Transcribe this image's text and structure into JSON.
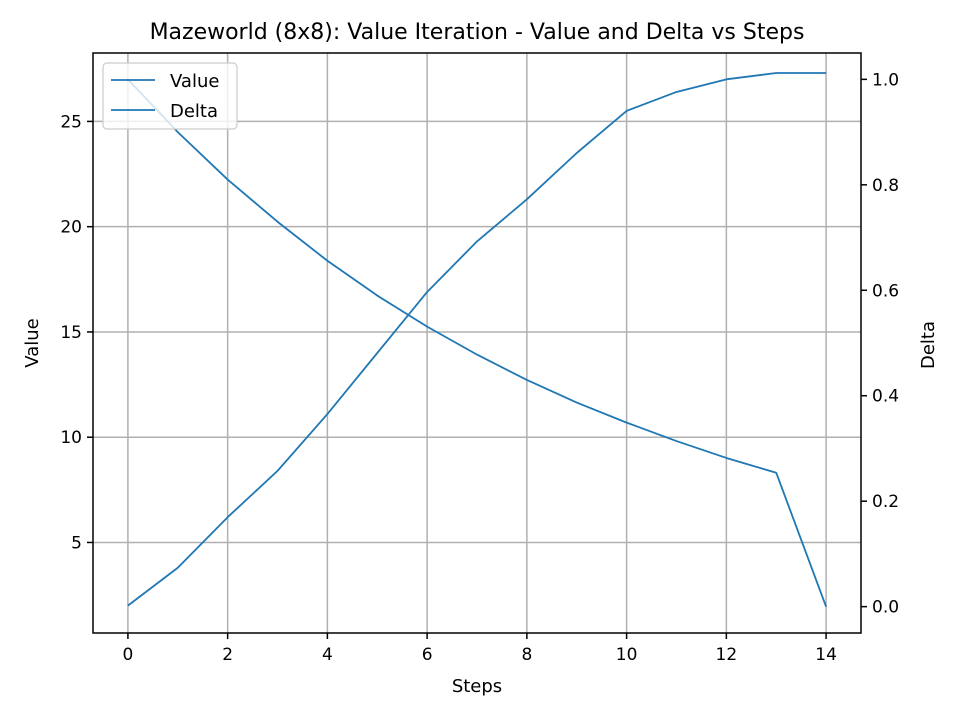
{
  "chart_data": {
    "type": "line",
    "title": "Mazeworld (8x8): Value Iteration - Value and Delta vs Steps",
    "xlabel": "Steps",
    "ylabel": "Value",
    "y2label": "Delta",
    "xlim": [
      -0.7,
      14.7
    ],
    "ylim": [
      0.7,
      28.25
    ],
    "y2lim": [
      -0.05,
      1.05
    ],
    "x_ticks": [
      0,
      2,
      4,
      6,
      8,
      10,
      12,
      14
    ],
    "y_ticks": [
      5,
      10,
      15,
      20,
      25
    ],
    "y2_ticks": [
      0.0,
      0.2,
      0.4,
      0.6,
      0.8,
      1.0
    ],
    "x_tick_labels": [
      "0",
      "2",
      "4",
      "6",
      "8",
      "10",
      "12",
      "14"
    ],
    "y_tick_labels": [
      "5",
      "10",
      "15",
      "20",
      "25"
    ],
    "y2_tick_labels": [
      "0.0",
      "0.2",
      "0.4",
      "0.6",
      "0.8",
      "1.0"
    ],
    "grid": true,
    "legend_position": "top-left",
    "x": [
      0,
      1,
      2,
      3,
      4,
      5,
      6,
      7,
      8,
      9,
      10,
      11,
      12,
      13,
      14
    ],
    "series": [
      {
        "name": "Value",
        "axis": "left",
        "color": "#1f77b4",
        "values": [
          2.0,
          3.8,
          6.2,
          8.4,
          11.1,
          14.0,
          16.9,
          19.3,
          21.3,
          23.5,
          25.5,
          26.4,
          27.0,
          27.3,
          27.3
        ]
      },
      {
        "name": "Delta",
        "axis": "right",
        "color": "#1f77b4",
        "values": [
          1.0,
          0.9,
          0.81,
          0.73,
          0.656,
          0.59,
          0.531,
          0.478,
          0.43,
          0.387,
          0.349,
          0.314,
          0.282,
          0.254,
          0.0
        ]
      }
    ]
  }
}
